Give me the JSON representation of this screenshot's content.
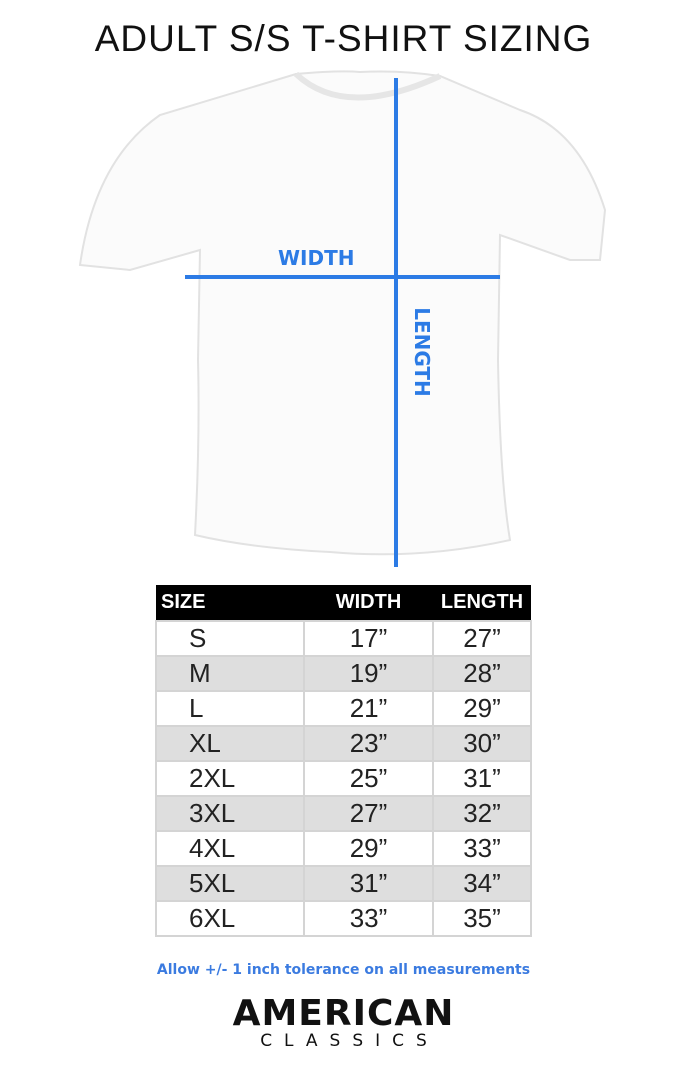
{
  "title": "ADULT S/S T-SHIRT SIZING",
  "diagram": {
    "width_label": "WIDTH",
    "length_label": "LENGTH",
    "line_color": "#2c7be5"
  },
  "table": {
    "headers": [
      "SIZE",
      "WIDTH",
      "LENGTH"
    ],
    "rows": [
      [
        "S",
        "17”",
        "27”"
      ],
      [
        "M",
        "19”",
        "28”"
      ],
      [
        "L",
        "21”",
        "29”"
      ],
      [
        "XL",
        "23”",
        "30”"
      ],
      [
        "2XL",
        "25”",
        "31”"
      ],
      [
        "3XL",
        "27”",
        "32”"
      ],
      [
        "4XL",
        "29”",
        "33”"
      ],
      [
        "5XL",
        "31”",
        "34”"
      ],
      [
        "6XL",
        "33”",
        "35”"
      ]
    ]
  },
  "note": "Allow +/- 1 inch tolerance on all measurements",
  "logo": {
    "line1": "AMERICAN",
    "line2": "CLASSICS"
  }
}
